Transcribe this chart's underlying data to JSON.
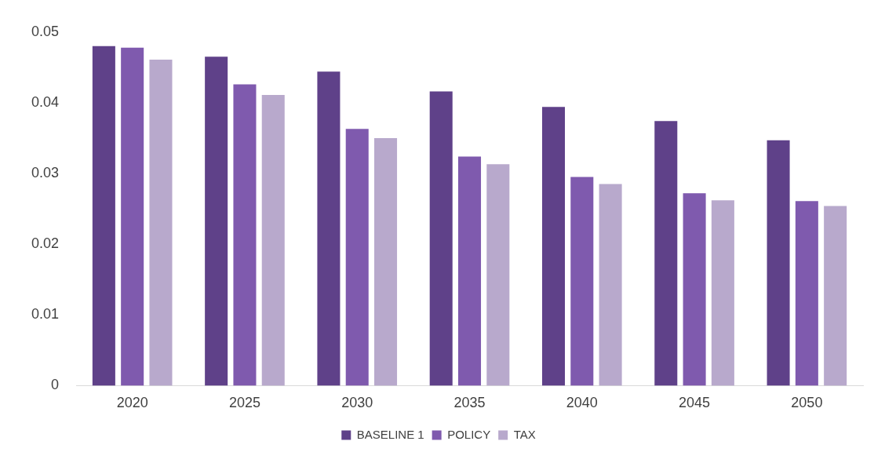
{
  "chart_data": {
    "type": "bar",
    "categories": [
      "2020",
      "2025",
      "2030",
      "2035",
      "2040",
      "2045",
      "2050"
    ],
    "series": [
      {
        "name": "BASELINE 1",
        "color": "#5f4189",
        "values": [
          0.048,
          0.0465,
          0.0444,
          0.0416,
          0.0394,
          0.0374,
          0.0347
        ]
      },
      {
        "name": "POLICY",
        "color": "#7f5aae",
        "values": [
          0.0478,
          0.0426,
          0.0363,
          0.0324,
          0.0295,
          0.0272,
          0.0261
        ]
      },
      {
        "name": "TAX",
        "color": "#b8a9cc",
        "values": [
          0.0461,
          0.0411,
          0.035,
          0.0313,
          0.0285,
          0.0262,
          0.0254
        ]
      }
    ],
    "ylim": [
      0,
      0.05
    ],
    "yticks": [
      0,
      0.01,
      0.02,
      0.03,
      0.04,
      0.05
    ],
    "grid": false,
    "legend": "bottom"
  }
}
